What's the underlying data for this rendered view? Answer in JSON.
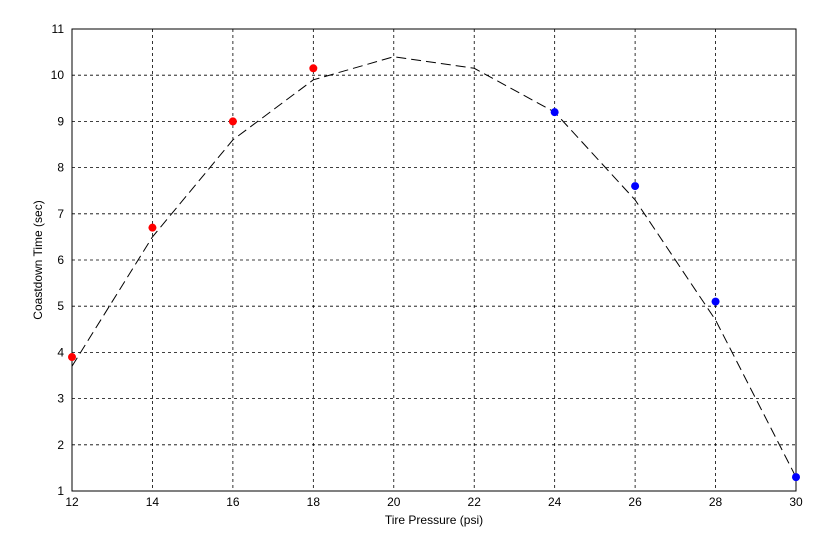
{
  "chart_data": {
    "type": "scatter",
    "xlabel": "Tire Pressure (psi)",
    "ylabel": "Coastdown Time (sec)",
    "xlim": [
      12,
      30
    ],
    "xticks": [
      12,
      14,
      16,
      18,
      20,
      22,
      24,
      26,
      28,
      30
    ],
    "ylim": [
      1,
      11
    ],
    "yticks": [
      1,
      2,
      3,
      4,
      5,
      6,
      7,
      8,
      9,
      10,
      11
    ],
    "grid": true,
    "series": [
      {
        "style": "markers",
        "color": "#ff0000",
        "x": [
          12,
          14,
          16,
          18
        ],
        "values": [
          3.9,
          6.7,
          9.0,
          10.15
        ]
      },
      {
        "style": "markers",
        "color": "#0000ff",
        "x": [
          24,
          26,
          28,
          30
        ],
        "values": [
          9.2,
          7.6,
          5.1,
          1.3
        ]
      },
      {
        "style": "dashed-line",
        "color": "#000000",
        "x": [
          12,
          14,
          16,
          18,
          20,
          22,
          24,
          26,
          28,
          30
        ],
        "values": [
          3.7,
          6.5,
          8.6,
          9.9,
          10.4,
          10.15,
          9.2,
          7.3,
          4.7,
          1.3
        ]
      }
    ]
  }
}
